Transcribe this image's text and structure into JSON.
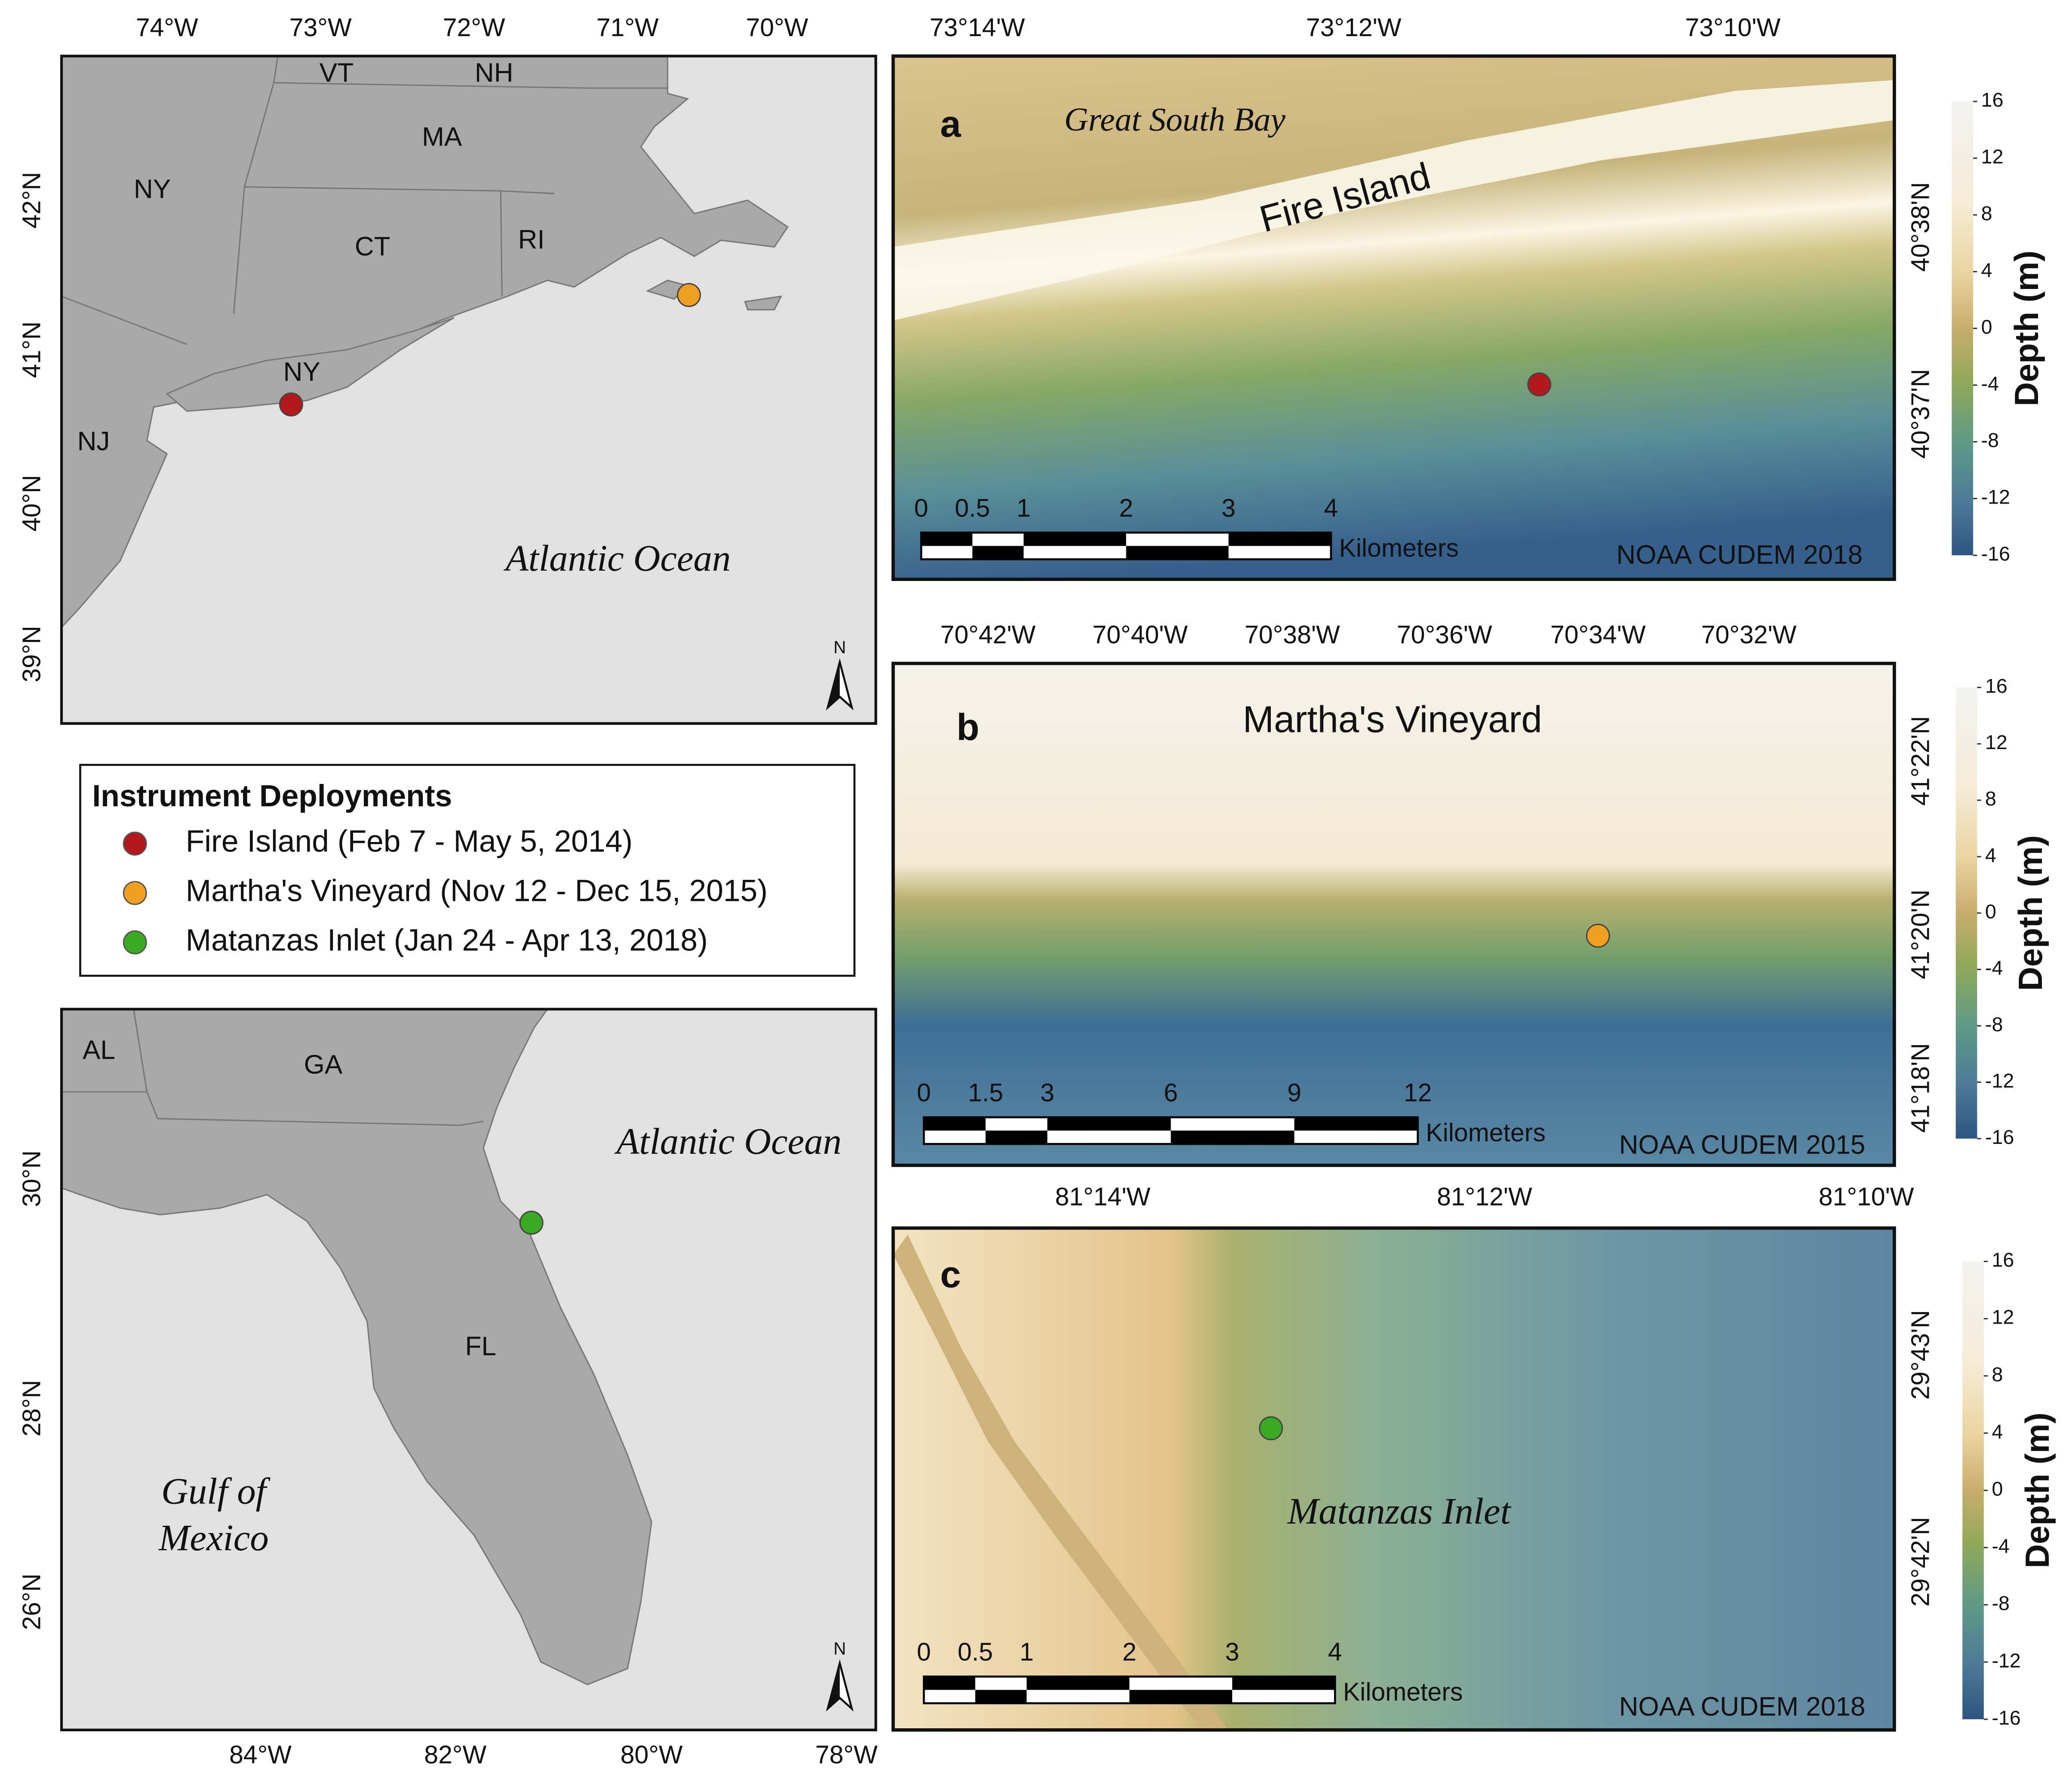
{
  "overview_maps": [
    {
      "lon_ticks": [
        "74°W",
        "73°W",
        "72°W",
        "71°W",
        "70°W"
      ],
      "lat_ticks": [
        "42°N",
        "41°N",
        "40°N",
        "39°N"
      ],
      "labels": [
        "VT",
        "NH",
        "MA",
        "NY",
        "CT",
        "RI",
        "NY",
        "NJ"
      ],
      "ocean_label": "Atlantic Ocean",
      "north": "N"
    },
    {
      "lon_ticks": [
        "84°W",
        "82°W",
        "80°W",
        "78°W"
      ],
      "lat_ticks": [
        "30°N",
        "28°N",
        "26°N"
      ],
      "labels": [
        "AL",
        "GA",
        "FL"
      ],
      "ocean_label": "Atlantic Ocean",
      "gulf_label": [
        "Gulf of",
        "Mexico"
      ],
      "north": "N"
    }
  ],
  "legend": {
    "title": "Instrument Deployments",
    "items": [
      {
        "label": "Fire Island (Feb 7 - May 5, 2014)",
        "color": "#b3191c"
      },
      {
        "label": "Martha's Vineyard (Nov 12 - Dec 15, 2015)",
        "color": "#f0a020"
      },
      {
        "label": "Matanzas Inlet (Jan 24 - Apr 13, 2018)",
        "color": "#3aaa22"
      }
    ]
  },
  "panels": [
    {
      "letter": "a",
      "top_ticks": [
        "73°14'W",
        "73°12'W",
        "73°10'W"
      ],
      "right_ticks": [
        "40°38'N",
        "40°37'N"
      ],
      "place_labels": [
        "Great South Bay",
        "Fire Island"
      ],
      "scale": {
        "ticks": [
          0,
          0.5,
          1,
          2,
          3,
          4
        ],
        "unit": "Kilometers"
      },
      "source": "NOAA CUDEM 2018",
      "colorbar": {
        "label": "Depth (m)",
        "ticks": [
          16,
          12,
          8,
          4,
          0,
          -4,
          -8,
          -12,
          -16
        ]
      }
    },
    {
      "letter": "b",
      "top_ticks": [
        "70°42'W",
        "70°40'W",
        "70°38'W",
        "70°36'W",
        "70°34'W",
        "70°32'W"
      ],
      "right_ticks": [
        "41°22'N",
        "41°20'N",
        "41°18'N"
      ],
      "place_labels": [
        "Martha's Vineyard"
      ],
      "scale": {
        "ticks": [
          0,
          1.5,
          3,
          6,
          9,
          12
        ],
        "unit": "Kilometers"
      },
      "source": "NOAA CUDEM 2015",
      "colorbar": {
        "label": "Depth (m)",
        "ticks": [
          16,
          12,
          8,
          4,
          0,
          -4,
          -8,
          -12,
          -16
        ]
      }
    },
    {
      "letter": "c",
      "top_ticks": [
        "81°14'W",
        "81°12'W",
        "81°10'W"
      ],
      "right_ticks": [
        "29°43'N",
        "29°42'N"
      ],
      "place_labels": [
        "Matanzas Inlet"
      ],
      "scale": {
        "ticks": [
          0,
          0.5,
          1,
          2,
          3,
          4
        ],
        "unit": "Kilometers"
      },
      "source": "NOAA CUDEM 2018",
      "colorbar": {
        "label": "Depth (m)",
        "ticks": [
          16,
          12,
          8,
          4,
          0,
          -4,
          -8,
          -12,
          -16
        ]
      }
    }
  ]
}
